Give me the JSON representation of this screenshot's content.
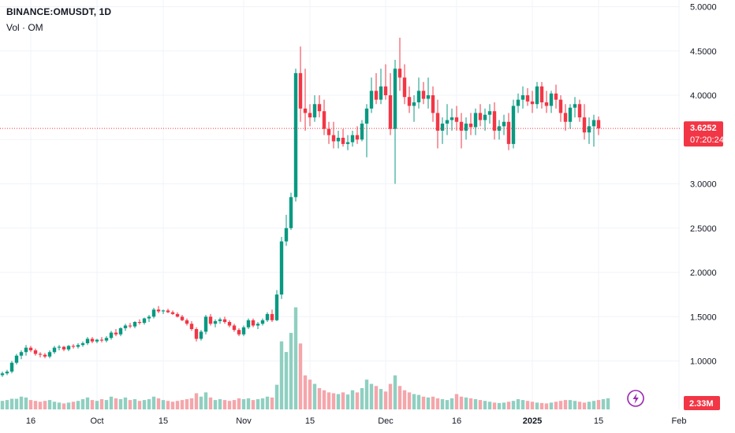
{
  "header": {
    "symbol_line": "BINANCE:OMUSDT, 1D",
    "volume_line": "Vol · OM"
  },
  "price_badge": {
    "price": "3.6252",
    "countdown": "07:20:24",
    "color": "#f23645"
  },
  "volume_badge": {
    "value": "2.33M",
    "color": "#f23645"
  },
  "colors": {
    "up": "#089981",
    "down": "#f23645",
    "volume_up": "#8fcfc1",
    "volume_down": "#f4a6ab",
    "grid": "#f0f3fa",
    "price_line": "#f23645"
  },
  "chart_data": {
    "type": "candlestick",
    "y_ticks": [
      "5.0000",
      "4.5000",
      "4.0000",
      "3.5000",
      "3.0000",
      "2.5000",
      "2.0000",
      "1.5000",
      "1.0000"
    ],
    "y_tick_values": [
      5.0,
      4.5,
      4.0,
      3.5,
      3.0,
      2.5,
      2.0,
      1.5,
      1.0
    ],
    "ylim": [
      0.66,
      5.1
    ],
    "x_ticks": [
      {
        "label": "16",
        "index": 6,
        "bold": false
      },
      {
        "label": "Oct",
        "index": 20,
        "bold": false
      },
      {
        "label": "15",
        "index": 34,
        "bold": false
      },
      {
        "label": "Nov",
        "index": 51,
        "bold": false
      },
      {
        "label": "15",
        "index": 65,
        "bold": false
      },
      {
        "label": "Dec",
        "index": 81,
        "bold": false
      },
      {
        "label": "16",
        "index": 96,
        "bold": false
      },
      {
        "label": "2025",
        "index": 112,
        "bold": true
      },
      {
        "label": "15",
        "index": 126,
        "bold": false
      },
      {
        "label": "Feb",
        "index": 143,
        "bold": false
      }
    ],
    "last_price": 3.6252,
    "candles_ohlc": [
      [
        0.84,
        0.88,
        0.82,
        0.86
      ],
      [
        0.86,
        0.9,
        0.84,
        0.88
      ],
      [
        0.88,
        1.0,
        0.86,
        0.98
      ],
      [
        0.98,
        1.08,
        0.96,
        1.06
      ],
      [
        1.06,
        1.12,
        1.02,
        1.1
      ],
      [
        1.1,
        1.18,
        1.06,
        1.15
      ],
      [
        1.15,
        1.17,
        1.1,
        1.12
      ],
      [
        1.12,
        1.14,
        1.06,
        1.08
      ],
      [
        1.08,
        1.1,
        1.04,
        1.07
      ],
      [
        1.07,
        1.09,
        1.03,
        1.05
      ],
      [
        1.05,
        1.12,
        1.03,
        1.1
      ],
      [
        1.1,
        1.17,
        1.08,
        1.15
      ],
      [
        1.15,
        1.18,
        1.12,
        1.16
      ],
      [
        1.16,
        1.17,
        1.11,
        1.13
      ],
      [
        1.13,
        1.18,
        1.11,
        1.17
      ],
      [
        1.17,
        1.19,
        1.14,
        1.16
      ],
      [
        1.16,
        1.2,
        1.14,
        1.18
      ],
      [
        1.18,
        1.22,
        1.16,
        1.2
      ],
      [
        1.2,
        1.27,
        1.18,
        1.25
      ],
      [
        1.25,
        1.27,
        1.2,
        1.22
      ],
      [
        1.22,
        1.25,
        1.2,
        1.24
      ],
      [
        1.24,
        1.27,
        1.21,
        1.23
      ],
      [
        1.23,
        1.28,
        1.21,
        1.26
      ],
      [
        1.26,
        1.34,
        1.24,
        1.32
      ],
      [
        1.32,
        1.36,
        1.28,
        1.3
      ],
      [
        1.3,
        1.38,
        1.28,
        1.37
      ],
      [
        1.37,
        1.42,
        1.34,
        1.4
      ],
      [
        1.4,
        1.43,
        1.37,
        1.39
      ],
      [
        1.39,
        1.45,
        1.37,
        1.44
      ],
      [
        1.44,
        1.47,
        1.41,
        1.43
      ],
      [
        1.43,
        1.49,
        1.41,
        1.48
      ],
      [
        1.48,
        1.52,
        1.44,
        1.5
      ],
      [
        1.5,
        1.6,
        1.48,
        1.58
      ],
      [
        1.58,
        1.62,
        1.54,
        1.56
      ],
      [
        1.56,
        1.58,
        1.53,
        1.57
      ],
      [
        1.57,
        1.59,
        1.54,
        1.55
      ],
      [
        1.55,
        1.57,
        1.52,
        1.53
      ],
      [
        1.53,
        1.55,
        1.49,
        1.5
      ],
      [
        1.5,
        1.52,
        1.45,
        1.46
      ],
      [
        1.46,
        1.48,
        1.4,
        1.42
      ],
      [
        1.42,
        1.45,
        1.34,
        1.36
      ],
      [
        1.36,
        1.38,
        1.22,
        1.25
      ],
      [
        1.25,
        1.35,
        1.23,
        1.33
      ],
      [
        1.33,
        1.52,
        1.3,
        1.5
      ],
      [
        1.5,
        1.53,
        1.4,
        1.42
      ],
      [
        1.42,
        1.47,
        1.38,
        1.45
      ],
      [
        1.45,
        1.49,
        1.42,
        1.47
      ],
      [
        1.47,
        1.5,
        1.42,
        1.44
      ],
      [
        1.44,
        1.46,
        1.38,
        1.4
      ],
      [
        1.4,
        1.42,
        1.33,
        1.35
      ],
      [
        1.35,
        1.37,
        1.28,
        1.3
      ],
      [
        1.3,
        1.4,
        1.28,
        1.38
      ],
      [
        1.38,
        1.48,
        1.36,
        1.46
      ],
      [
        1.46,
        1.48,
        1.38,
        1.4
      ],
      [
        1.4,
        1.44,
        1.36,
        1.42
      ],
      [
        1.42,
        1.48,
        1.4,
        1.46
      ],
      [
        1.46,
        1.55,
        1.44,
        1.53
      ],
      [
        1.53,
        1.58,
        1.44,
        1.46
      ],
      [
        1.46,
        1.8,
        1.45,
        1.75
      ],
      [
        1.75,
        2.4,
        1.7,
        2.35
      ],
      [
        2.35,
        2.65,
        2.3,
        2.5
      ],
      [
        2.5,
        2.9,
        2.48,
        2.85
      ],
      [
        2.85,
        4.3,
        2.8,
        4.25
      ],
      [
        4.25,
        4.55,
        3.7,
        3.85
      ],
      [
        3.85,
        4.3,
        3.6,
        3.8
      ],
      [
        3.8,
        3.9,
        3.65,
        3.75
      ],
      [
        3.75,
        4.0,
        3.7,
        3.9
      ],
      [
        3.9,
        4.0,
        3.75,
        3.82
      ],
      [
        3.82,
        3.95,
        3.55,
        3.62
      ],
      [
        3.62,
        3.7,
        3.45,
        3.55
      ],
      [
        3.55,
        3.7,
        3.4,
        3.48
      ],
      [
        3.48,
        3.6,
        3.4,
        3.52
      ],
      [
        3.52,
        3.62,
        3.42,
        3.45
      ],
      [
        3.45,
        3.55,
        3.38,
        3.47
      ],
      [
        3.47,
        3.6,
        3.42,
        3.55
      ],
      [
        3.55,
        3.65,
        3.45,
        3.5
      ],
      [
        3.5,
        3.72,
        3.48,
        3.68
      ],
      [
        3.68,
        3.9,
        3.3,
        3.85
      ],
      [
        3.85,
        4.2,
        3.8,
        4.05
      ],
      [
        4.05,
        4.25,
        3.9,
        3.95
      ],
      [
        3.95,
        4.3,
        3.9,
        4.1
      ],
      [
        4.1,
        4.35,
        3.95,
        4.0
      ],
      [
        4.0,
        4.25,
        3.55,
        3.62
      ],
      [
        3.62,
        4.4,
        3.0,
        4.3
      ],
      [
        4.3,
        4.65,
        4.05,
        4.2
      ],
      [
        4.2,
        4.35,
        3.9,
        3.98
      ],
      [
        3.98,
        4.1,
        3.8,
        3.88
      ],
      [
        3.88,
        4.0,
        3.7,
        3.92
      ],
      [
        3.92,
        4.2,
        3.85,
        4.05
      ],
      [
        4.05,
        4.15,
        3.9,
        3.96
      ],
      [
        3.96,
        4.2,
        3.85,
        4.0
      ],
      [
        4.0,
        4.1,
        3.7,
        3.8
      ],
      [
        3.8,
        3.95,
        3.4,
        3.6
      ],
      [
        3.6,
        3.75,
        3.45,
        3.68
      ],
      [
        3.68,
        3.9,
        3.55,
        3.72
      ],
      [
        3.72,
        3.85,
        3.6,
        3.75
      ],
      [
        3.75,
        3.88,
        3.6,
        3.7
      ],
      [
        3.7,
        3.8,
        3.4,
        3.6
      ],
      [
        3.6,
        3.75,
        3.5,
        3.68
      ],
      [
        3.68,
        3.8,
        3.55,
        3.64
      ],
      [
        3.64,
        3.85,
        3.55,
        3.8
      ],
      [
        3.8,
        3.9,
        3.65,
        3.72
      ],
      [
        3.72,
        3.85,
        3.6,
        3.78
      ],
      [
        3.78,
        3.9,
        3.68,
        3.82
      ],
      [
        3.82,
        3.92,
        3.5,
        3.6
      ],
      [
        3.6,
        3.72,
        3.5,
        3.65
      ],
      [
        3.65,
        3.78,
        3.55,
        3.7
      ],
      [
        3.7,
        3.8,
        3.38,
        3.45
      ],
      [
        3.45,
        3.95,
        3.4,
        3.88
      ],
      [
        3.88,
        4.02,
        3.8,
        3.95
      ],
      [
        3.95,
        4.1,
        3.85,
        4.0
      ],
      [
        4.0,
        4.08,
        3.88,
        3.93
      ],
      [
        3.93,
        4.05,
        3.8,
        3.9
      ],
      [
        3.9,
        4.15,
        3.85,
        4.1
      ],
      [
        4.1,
        4.15,
        3.85,
        3.92
      ],
      [
        3.92,
        4.05,
        3.8,
        3.88
      ],
      [
        3.88,
        4.05,
        3.8,
        4.02
      ],
      [
        4.02,
        4.12,
        3.85,
        3.95
      ],
      [
        3.95,
        4.0,
        3.7,
        3.8
      ],
      [
        3.8,
        3.9,
        3.6,
        3.7
      ],
      [
        3.7,
        3.9,
        3.62,
        3.86
      ],
      [
        3.86,
        3.98,
        3.75,
        3.9
      ],
      [
        3.9,
        3.95,
        3.7,
        3.75
      ],
      [
        3.75,
        3.9,
        3.5,
        3.58
      ],
      [
        3.58,
        3.75,
        3.45,
        3.65
      ],
      [
        3.65,
        3.78,
        3.42,
        3.72
      ],
      [
        3.72,
        3.76,
        3.55,
        3.6252
      ]
    ],
    "volume_relative": [
      0.2,
      0.22,
      0.25,
      0.25,
      0.3,
      0.28,
      0.22,
      0.2,
      0.18,
      0.2,
      0.22,
      0.18,
      0.16,
      0.14,
      0.16,
      0.18,
      0.2,
      0.24,
      0.28,
      0.22,
      0.2,
      0.24,
      0.22,
      0.3,
      0.26,
      0.24,
      0.28,
      0.22,
      0.24,
      0.2,
      0.22,
      0.24,
      0.3,
      0.26,
      0.22,
      0.2,
      0.18,
      0.2,
      0.22,
      0.24,
      0.26,
      0.38,
      0.3,
      0.4,
      0.28,
      0.22,
      0.24,
      0.22,
      0.2,
      0.22,
      0.26,
      0.24,
      0.26,
      0.22,
      0.24,
      0.26,
      0.3,
      0.28,
      0.58,
      1.6,
      1.35,
      1.8,
      2.4,
      1.55,
      0.8,
      0.7,
      0.6,
      0.5,
      0.45,
      0.4,
      0.38,
      0.36,
      0.4,
      0.35,
      0.45,
      0.4,
      0.5,
      0.7,
      0.6,
      0.55,
      0.48,
      0.42,
      0.6,
      0.8,
      0.55,
      0.45,
      0.4,
      0.36,
      0.34,
      0.3,
      0.28,
      0.3,
      0.26,
      0.24,
      0.22,
      0.26,
      0.36,
      0.3,
      0.28,
      0.26,
      0.24,
      0.22,
      0.2,
      0.18,
      0.16,
      0.15,
      0.16,
      0.18,
      0.2,
      0.24,
      0.22,
      0.2,
      0.18,
      0.16,
      0.15,
      0.14,
      0.16,
      0.18,
      0.2,
      0.22,
      0.22,
      0.2,
      0.18,
      0.16,
      0.18,
      0.2,
      0.22,
      0.24,
      0.26
    ]
  }
}
